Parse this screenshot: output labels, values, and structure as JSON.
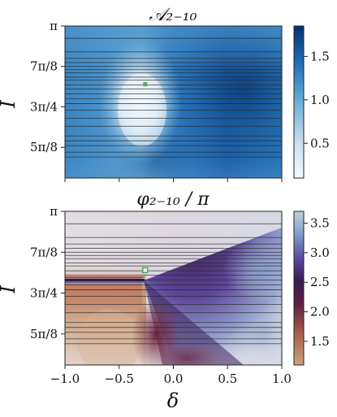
{
  "chart_data": [
    {
      "type": "heatmap",
      "title": "𝒜₂₋₁₀",
      "ylabel": "I",
      "xlabel": "",
      "xlim": [
        -1.0,
        1.0
      ],
      "ylim_pi_fraction": [
        0.53,
        1.0
      ],
      "y_tick_labels": [
        "π",
        "7π/8",
        "3π/4",
        "5π/8"
      ],
      "y_tick_values_over_pi": [
        1.0,
        0.875,
        0.75,
        0.625
      ],
      "colorbar": {
        "colormap": "Blues",
        "range": [
          0.1,
          1.85
        ],
        "ticks": [
          0.5,
          1.0,
          1.5
        ],
        "tick_labels": [
          "0.5",
          "1.0",
          "1.5"
        ],
        "colors": [
          "#f7fbff",
          "#c6dbef",
          "#6baed6",
          "#2171b5",
          "#08306b"
        ]
      },
      "horizontal_lines_over_pi": [
        0.962,
        0.92,
        0.9,
        0.887,
        0.875,
        0.865,
        0.855,
        0.842,
        0.833,
        0.818,
        0.805,
        0.79,
        0.775,
        0.76,
        0.74,
        0.715,
        0.69,
        0.66,
        0.645,
        0.63,
        0.61,
        0.595
      ],
      "marker": {
        "x": -0.26,
        "y_over_pi": 0.82,
        "color": "#4caf50"
      },
      "features": [
        {
          "name": "minimum",
          "x": -0.27,
          "y_over_pi": 0.8,
          "value": 0.15
        }
      ]
    },
    {
      "type": "heatmap",
      "title": "φ₂₋₁₀ / π",
      "ylabel": "I",
      "xlabel": "δ",
      "xlim": [
        -1.0,
        1.0
      ],
      "x_tick_labels": [
        "−1.0",
        "−0.5",
        "0.0",
        "0.5",
        "1.0"
      ],
      "x_tick_values": [
        -1.0,
        -0.5,
        0.0,
        0.5,
        1.0
      ],
      "ylim_pi_fraction": [
        0.53,
        1.0
      ],
      "y_tick_labels": [
        "π",
        "7π/8",
        "3π/4",
        "5π/8"
      ],
      "y_tick_values_over_pi": [
        1.0,
        0.875,
        0.75,
        0.625
      ],
      "colorbar": {
        "colormap": "twilight_shifted",
        "range": [
          1.1,
          3.7
        ],
        "ticks": [
          1.5,
          2.0,
          2.5,
          3.0,
          3.5
        ],
        "tick_labels": [
          "1.5",
          "2.0",
          "2.5",
          "3.0",
          "3.5"
        ],
        "colors": [
          "#c9a27e",
          "#8c3a3f",
          "#3a1a4d",
          "#5b3f9a",
          "#6f8fc4",
          "#b7c8d8",
          "#e2e0e2"
        ]
      },
      "horizontal_lines_over_pi": [
        0.962,
        0.92,
        0.9,
        0.887,
        0.875,
        0.865,
        0.855,
        0.842,
        0.833,
        0.818,
        0.805,
        0.79,
        0.775,
        0.76,
        0.74,
        0.715,
        0.69,
        0.66,
        0.645,
        0.63,
        0.61,
        0.595
      ],
      "marker": {
        "x": -0.26,
        "y_over_pi": 0.82,
        "color": "#4caf50"
      }
    }
  ]
}
